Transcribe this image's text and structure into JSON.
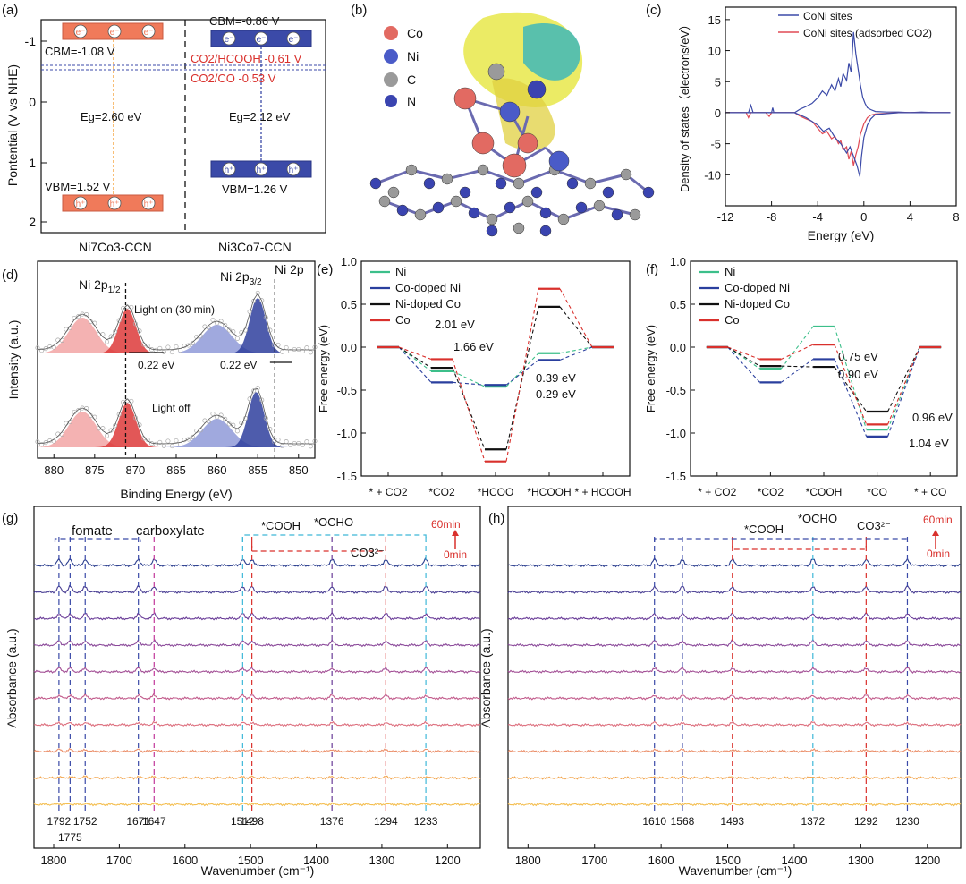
{
  "panels": {
    "a": "(a)",
    "b": "(b)",
    "c": "(c)",
    "d": "(d)",
    "e": "(e)",
    "f": "(f)",
    "g": "(g)",
    "h": "(h)"
  },
  "colors": {
    "orange": "#f07a5a",
    "blue": "#3b4aa8",
    "red": "#d9302c",
    "green": "#3cbf8a",
    "navy": "#2a3f9e",
    "black": "#111111"
  },
  "band": {
    "ylabel": "Pontential  (V vs NHE)",
    "yticks": [
      "-1",
      "0",
      "1",
      "2"
    ],
    "left": {
      "name": "Ni7Co3-CCN",
      "cbm": "CBM=-1.08 V",
      "vbm": "VBM=1.52 V",
      "eg": "Eg=2.60 eV"
    },
    "right": {
      "name": "Ni3Co7-CCN",
      "cbm": "CBM=-0.86 V",
      "vbm": "VBM=1.26 V",
      "eg": "Eg=2.12 eV"
    },
    "redox1": "CO2/HCOOH  -0.61 V",
    "redox2": "CO2/CO -0.53 V",
    "electron": "e⁻",
    "hole": "h⁺"
  },
  "structure": {
    "legend": [
      "Co",
      "Ni",
      "C",
      "N"
    ],
    "colors": [
      "#e26a62",
      "#4a5bc8",
      "#9a9a9a",
      "#3a44b0"
    ]
  },
  "chart_data": [
    {
      "id": "c",
      "type": "line",
      "xlabel": "Energy (eV)",
      "ylabel": "Density of states（electrons/eV）",
      "xlim": [
        -12,
        8
      ],
      "ylim": [
        -15,
        17
      ],
      "xticks": [
        "-12",
        "-8",
        "-4",
        "0",
        "4",
        "8"
      ],
      "yticks": [
        "15",
        "10",
        "5",
        "0",
        "-5",
        "-10"
      ],
      "legend": [
        "CoNi sites",
        "CoNi sites (adsorbed CO2)"
      ],
      "series": [
        {
          "name": "CoNi sites",
          "color": "#3b4aa8",
          "x": [
            -12,
            -10,
            -9.8,
            -9.6,
            -8,
            -7.9,
            -7.8,
            -6,
            -5.5,
            -5,
            -4.5,
            -4,
            -3.6,
            -3.2,
            -2.8,
            -2.5,
            -2.2,
            -2,
            -1.8,
            -1.5,
            -1.3,
            -1.1,
            -0.9,
            -0.7,
            -0.5,
            -0.3,
            -0.1,
            0.1,
            0.3,
            0.6,
            1,
            2,
            3,
            4,
            5,
            6,
            7.5
          ],
          "y": [
            0,
            0,
            1.2,
            0,
            0,
            0.8,
            0,
            0,
            0.6,
            1,
            1.5,
            2.4,
            3.5,
            2.8,
            4.5,
            3.5,
            5.5,
            4.2,
            6.3,
            5.2,
            8,
            6.5,
            13,
            9.5,
            7,
            4.5,
            2.5,
            1.5,
            0.8,
            0.5,
            0.2,
            0.1,
            0.1,
            0,
            0.1,
            0,
            0
          ]
        },
        {
          "name": "CoNi sites (adsorbed CO2)",
          "color": "#e04a55",
          "x": [
            -12,
            -10.2,
            -10,
            -9.8,
            -8.5,
            -8.2,
            -8,
            -6,
            -5.6,
            -5,
            -4.5,
            -4,
            -3.6,
            -3.2,
            -2.8,
            -2.5,
            -2.2,
            -2,
            -1.8,
            -1.5,
            -1.3,
            -1.1,
            -0.9,
            -0.7,
            -0.5,
            -0.3,
            0,
            0.3,
            0.6,
            1,
            2,
            3,
            4,
            5,
            6,
            7.5
          ],
          "y": [
            0,
            0,
            -0.8,
            0,
            0,
            -0.6,
            0,
            0,
            -0.5,
            -1,
            -1.4,
            -2.5,
            -3.4,
            -3,
            -4.2,
            -3.8,
            -5,
            -4.5,
            -6,
            -5.5,
            -7.5,
            -6.2,
            -8.5,
            -6.8,
            -5.5,
            -3.5,
            -1.8,
            -0.8,
            -0.4,
            -0.2,
            -0.1,
            0,
            0,
            0,
            0,
            0
          ]
        },
        {
          "name": "CoNi sites (lower)",
          "color": "#3b4aa8",
          "x": [
            -12,
            -6,
            -5,
            -4,
            -3.5,
            -3,
            -2.5,
            -2,
            -1.5,
            -1.2,
            -0.9,
            -0.6,
            -0.35,
            -0.2,
            0,
            0.3,
            0.6,
            1,
            3,
            7.5
          ],
          "y": [
            0,
            0,
            -0.8,
            -2,
            -3,
            -2.5,
            -4,
            -5,
            -6.5,
            -5.5,
            -7,
            -8.5,
            -10.3,
            -7,
            -4,
            -2,
            -1,
            -0.3,
            0,
            0
          ]
        }
      ]
    },
    {
      "id": "d",
      "type": "line",
      "xlabel": "Binding Energy (eV)",
      "ylabel": "Intensity (a.u.)",
      "xlim": [
        882,
        848
      ],
      "xticks": [
        "880",
        "875",
        "870",
        "865",
        "860",
        "855",
        "850"
      ],
      "labels": [
        "Ni 2p1/2",
        "Ni 2p3/2",
        "Ni 2p",
        "Light on (30 min)",
        "Light off",
        "0.22 eV",
        "0.22 eV"
      ]
    },
    {
      "id": "e",
      "type": "line",
      "ylabel": "Free energy (eV)",
      "ylim": [
        -1.5,
        1.0
      ],
      "yticks": [
        "1.0",
        "0.5",
        "0.0",
        "-0.5",
        "-1.0",
        "-1.5"
      ],
      "categories": [
        "* + CO2",
        "*CO2",
        "*HCOO",
        "*HCOOH",
        "* + HCOOH"
      ],
      "legend": [
        "Ni",
        "Co-doped Ni",
        "Ni-doped Co",
        "Co"
      ],
      "series": [
        {
          "name": "Ni",
          "color": "#3cbf8a",
          "values": [
            0,
            -0.28,
            -0.46,
            -0.07,
            0
          ]
        },
        {
          "name": "Co-doped Ni",
          "color": "#2a3f9e",
          "values": [
            0,
            -0.41,
            -0.44,
            -0.15,
            0
          ]
        },
        {
          "name": "Ni-doped Co",
          "color": "#111111",
          "values": [
            0,
            -0.24,
            -1.19,
            0.47,
            0
          ]
        },
        {
          "name": "Co",
          "color": "#d9302c",
          "values": [
            0,
            -0.14,
            -1.33,
            0.68,
            0
          ]
        }
      ],
      "annotations": [
        "2.01 eV",
        "1.66 eV",
        "0.39 eV",
        "0.29 eV"
      ]
    },
    {
      "id": "f",
      "type": "line",
      "ylabel": "Free energy (eV)",
      "ylim": [
        -1.5,
        1.0
      ],
      "yticks": [
        "1.0",
        "0.5",
        "0.0",
        "-0.5",
        "-1.0",
        "-1.5"
      ],
      "categories": [
        "* + CO2",
        "*CO2",
        "*COOH",
        "*CO",
        "* + CO"
      ],
      "legend": [
        "Ni",
        "Co-doped Ni",
        "Ni-doped Co",
        "Co"
      ],
      "series": [
        {
          "name": "Ni",
          "color": "#3cbf8a",
          "values": [
            0,
            -0.25,
            0.24,
            -0.96,
            0
          ]
        },
        {
          "name": "Co-doped Ni",
          "color": "#2a3f9e",
          "values": [
            0,
            -0.41,
            -0.14,
            -1.04,
            0
          ]
        },
        {
          "name": "Ni-doped Co",
          "color": "#111111",
          "values": [
            0,
            -0.22,
            -0.23,
            -0.75,
            0
          ]
        },
        {
          "name": "Co",
          "color": "#d9302c",
          "values": [
            0,
            -0.14,
            0.03,
            -0.9,
            0
          ]
        }
      ],
      "annotations": [
        "0.75 eV",
        "0.90 eV",
        "0.96 eV",
        "1.04 eV"
      ]
    },
    {
      "id": "g",
      "type": "line",
      "xlabel": "Wavenumber (cm⁻¹)",
      "ylabel": "Absorbance (a.u.)",
      "xlim": [
        1830,
        1150
      ],
      "xticks": [
        "1800",
        "1700",
        "1600",
        "1500",
        "1400",
        "1300",
        "1200"
      ],
      "peaks": [
        "1792",
        "1775",
        "1752",
        "1671",
        "1647",
        "1512",
        "1498",
        "1376",
        "1294",
        "1233"
      ],
      "peak_x": [
        1792,
        1775,
        1752,
        1671,
        1647,
        1512,
        1498,
        1376,
        1294,
        1233
      ],
      "labels": [
        "fomate",
        "carboxylate",
        "*COOH",
        "*OCHO",
        "CO3²⁻"
      ],
      "time_top": "60min",
      "time_bottom": "0min",
      "curves": 10
    },
    {
      "id": "h",
      "type": "line",
      "xlabel": "Wavenumber (cm⁻¹)",
      "ylabel": "Absorbance (a.u.)",
      "xlim": [
        1830,
        1150
      ],
      "xticks": [
        "1800",
        "1700",
        "1600",
        "1500",
        "1400",
        "1300",
        "1200"
      ],
      "peaks": [
        "1610",
        "1568",
        "1493",
        "1372",
        "1292",
        "1230"
      ],
      "peak_x": [
        1610,
        1568,
        1493,
        1372,
        1292,
        1230
      ],
      "labels": [
        "*COOH",
        "*OCHO",
        "CO3²⁻"
      ],
      "time_top": "60min",
      "time_bottom": "0min",
      "curves": 10
    }
  ]
}
